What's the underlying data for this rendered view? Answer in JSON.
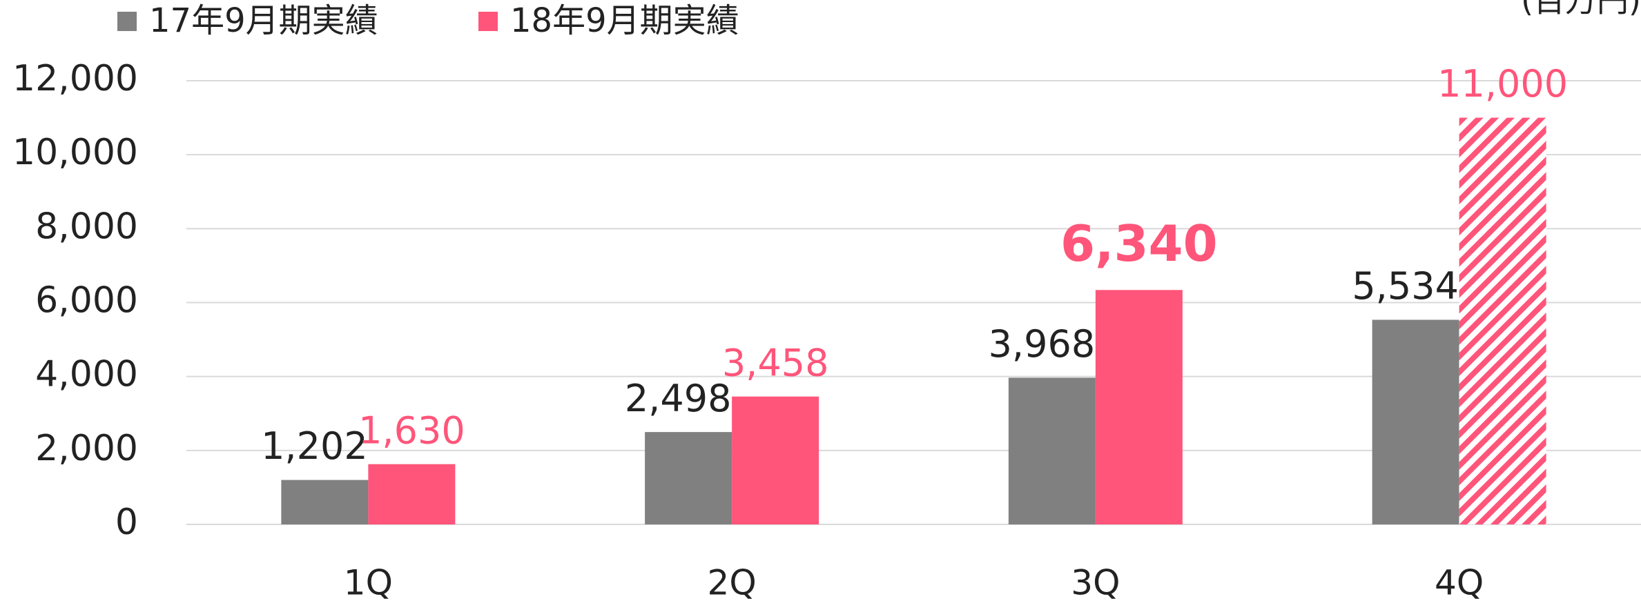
{
  "chart_data": {
    "type": "bar",
    "unit": "(百万円)",
    "categories": [
      "1Q",
      "2Q",
      "3Q",
      "4Q"
    ],
    "series": [
      {
        "name": "17年9月期実績",
        "color": "#808080",
        "values": [
          1202,
          2498,
          3968,
          5534
        ],
        "value_labels": [
          "1,202",
          "2,498",
          "3,968",
          "5,534"
        ]
      },
      {
        "name": "18年9月期実績",
        "color": "#ff557a",
        "values": [
          1630,
          3458,
          6340,
          11000
        ],
        "value_labels": [
          "1,630",
          "3,458",
          "6,340",
          "11,000"
        ],
        "hatched": [
          false,
          false,
          false,
          true
        ],
        "bold_labels": [
          false,
          false,
          true,
          false
        ]
      }
    ],
    "ylim": [
      0,
      12000
    ],
    "yticks": [
      0,
      {
        "value": 2000,
        "label": "2,000"
      },
      {
        "value": 4000,
        "label": "4,000"
      },
      {
        "value": 6000,
        "label": "6,000"
      },
      {
        "value": 8000,
        "label": "8,000"
      },
      {
        "value": 10000,
        "label": "10,000"
      },
      {
        "value": 12000,
        "label": "12,000"
      }
    ],
    "grid": true
  }
}
